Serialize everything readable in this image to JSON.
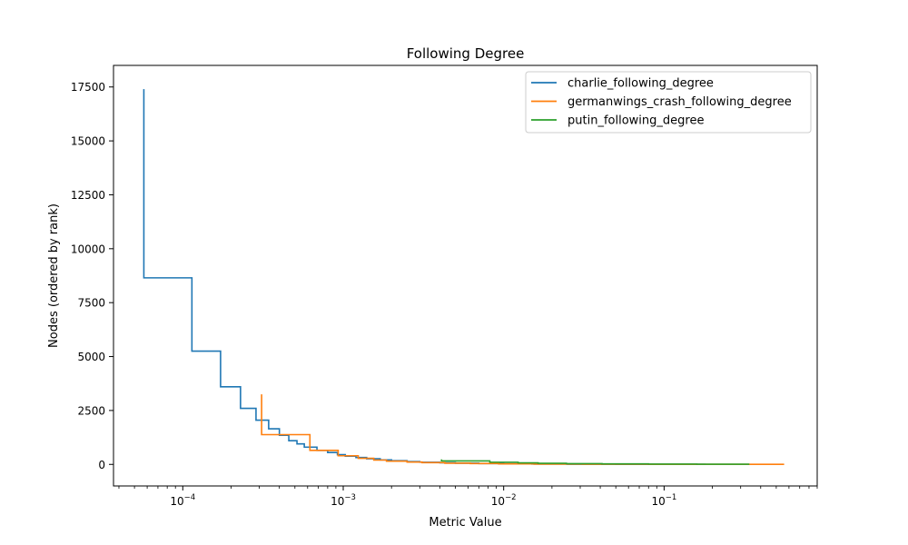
{
  "chart_data": {
    "type": "line",
    "title": "Following Degree",
    "xlabel": "Metric Value",
    "ylabel": "Nodes (ordered by rank)",
    "xscale": "log",
    "xlim": [
      3.7e-05,
      0.9
    ],
    "ylim": [
      -1000,
      18500
    ],
    "grid": false,
    "legend_position": "top-right",
    "x_ticks": [
      {
        "value": 0.0001,
        "label": "10",
        "exp": "−4"
      },
      {
        "value": 0.001,
        "label": "10",
        "exp": "−3"
      },
      {
        "value": 0.01,
        "label": "10",
        "exp": "−2"
      },
      {
        "value": 0.1,
        "label": "10",
        "exp": "−1"
      }
    ],
    "y_ticks": [
      {
        "value": 0,
        "label": "0"
      },
      {
        "value": 2500,
        "label": "2500"
      },
      {
        "value": 5000,
        "label": "5000"
      },
      {
        "value": 7500,
        "label": "7500"
      },
      {
        "value": 10000,
        "label": "10000"
      },
      {
        "value": 12500,
        "label": "12500"
      },
      {
        "value": 15000,
        "label": "15000"
      },
      {
        "value": 17500,
        "label": "17500"
      }
    ],
    "series": [
      {
        "name": "charlie_following_degree",
        "color": "#1f77b4",
        "points": [
          [
            5.72e-05,
            17400
          ],
          [
            5.72e-05,
            8650
          ],
          [
            0.000114,
            8650
          ],
          [
            0.000114,
            5250
          ],
          [
            0.000172,
            5250
          ],
          [
            0.000172,
            3600
          ],
          [
            0.000229,
            3600
          ],
          [
            0.000229,
            2600
          ],
          [
            0.000286,
            2600
          ],
          [
            0.000286,
            2050
          ],
          [
            0.000343,
            2050
          ],
          [
            0.000343,
            1650
          ],
          [
            0.0004,
            1650
          ],
          [
            0.0004,
            1350
          ],
          [
            0.000458,
            1350
          ],
          [
            0.000458,
            1100
          ],
          [
            0.000515,
            1100
          ],
          [
            0.000515,
            950
          ],
          [
            0.000572,
            950
          ],
          [
            0.000572,
            800
          ],
          [
            0.000686,
            800
          ],
          [
            0.000686,
            650
          ],
          [
            0.0008,
            650
          ],
          [
            0.0008,
            550
          ],
          [
            0.00092,
            550
          ],
          [
            0.00092,
            450
          ],
          [
            0.00103,
            450
          ],
          [
            0.00103,
            380
          ],
          [
            0.0012,
            380
          ],
          [
            0.0012,
            320
          ],
          [
            0.0014,
            320
          ],
          [
            0.0014,
            260
          ],
          [
            0.0017,
            260
          ],
          [
            0.0017,
            210
          ],
          [
            0.002,
            210
          ],
          [
            0.002,
            170
          ],
          [
            0.0025,
            170
          ],
          [
            0.0025,
            130
          ],
          [
            0.003,
            130
          ],
          [
            0.003,
            100
          ],
          [
            0.004,
            100
          ],
          [
            0.004,
            75
          ],
          [
            0.005,
            75
          ],
          [
            0.005,
            55
          ],
          [
            0.007,
            55
          ],
          [
            0.007,
            40
          ],
          [
            0.01,
            40
          ],
          [
            0.01,
            28
          ],
          [
            0.015,
            28
          ],
          [
            0.015,
            18
          ],
          [
            0.025,
            18
          ],
          [
            0.025,
            10
          ],
          [
            0.05,
            10
          ],
          [
            0.05,
            5
          ],
          [
            0.1,
            5
          ],
          [
            0.1,
            2
          ],
          [
            0.18,
            2
          ],
          [
            0.18,
            1
          ]
        ]
      },
      {
        "name": "germanwings_crash_following_degree",
        "color": "#ff7f0e",
        "points": [
          [
            0.00031,
            3250
          ],
          [
            0.00031,
            1380
          ],
          [
            0.00062,
            1380
          ],
          [
            0.00062,
            650
          ],
          [
            0.00093,
            650
          ],
          [
            0.00093,
            400
          ],
          [
            0.00124,
            400
          ],
          [
            0.00124,
            280
          ],
          [
            0.00155,
            280
          ],
          [
            0.00155,
            200
          ],
          [
            0.00186,
            200
          ],
          [
            0.00186,
            150
          ],
          [
            0.0025,
            150
          ],
          [
            0.0025,
            110
          ],
          [
            0.0031,
            110
          ],
          [
            0.0031,
            80
          ],
          [
            0.0043,
            80
          ],
          [
            0.0043,
            55
          ],
          [
            0.0062,
            55
          ],
          [
            0.0062,
            38
          ],
          [
            0.0093,
            38
          ],
          [
            0.0093,
            25
          ],
          [
            0.0155,
            25
          ],
          [
            0.0155,
            15
          ],
          [
            0.031,
            15
          ],
          [
            0.031,
            8
          ],
          [
            0.08,
            8
          ],
          [
            0.08,
            4
          ],
          [
            0.2,
            4
          ],
          [
            0.2,
            1
          ],
          [
            0.56,
            1
          ]
        ]
      },
      {
        "name": "putin_following_degree",
        "color": "#2ca02c",
        "points": [
          [
            0.0041,
            230
          ],
          [
            0.0041,
            160
          ],
          [
            0.0082,
            160
          ],
          [
            0.0082,
            100
          ],
          [
            0.0123,
            100
          ],
          [
            0.0123,
            70
          ],
          [
            0.0164,
            70
          ],
          [
            0.0164,
            50
          ],
          [
            0.0246,
            50
          ],
          [
            0.0246,
            35
          ],
          [
            0.041,
            35
          ],
          [
            0.041,
            22
          ],
          [
            0.08,
            22
          ],
          [
            0.08,
            12
          ],
          [
            0.16,
            12
          ],
          [
            0.16,
            6
          ],
          [
            0.34,
            6
          ]
        ]
      }
    ]
  }
}
